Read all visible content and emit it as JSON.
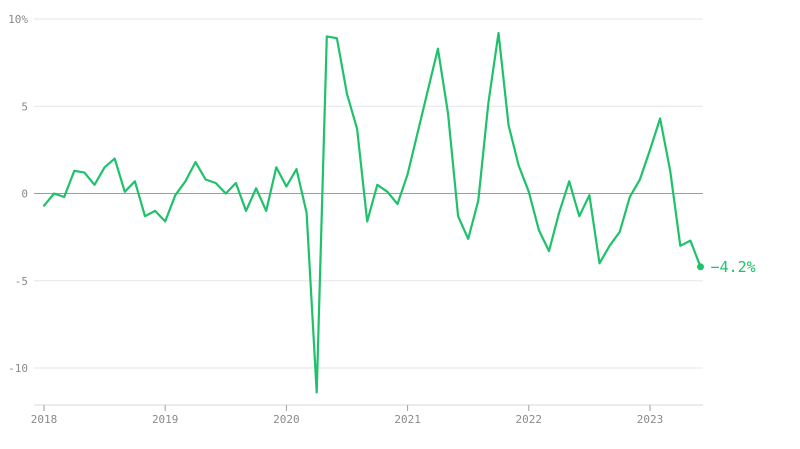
{
  "chart_data": {
    "type": "line",
    "title": "",
    "xlabel": "",
    "ylabel": "",
    "x_ticks": [
      "2018",
      "2019",
      "2020",
      "2021",
      "2022",
      "2023"
    ],
    "y_ticks": [
      "10%",
      "5",
      "0",
      "-5",
      "-10"
    ],
    "ylim": [
      -12,
      10.5
    ],
    "xlim": [
      "2018-01",
      "2023-06"
    ],
    "grid": "horizontal",
    "colors": {
      "line": "#1fc16b",
      "zero_line": "#9e9e9e",
      "grid": "#e6e6e6"
    },
    "end_label": "−4.2%",
    "series": [
      {
        "x": [
          "2018-01",
          "2018-02",
          "2018-03",
          "2018-04",
          "2018-05",
          "2018-06",
          "2018-07",
          "2018-08",
          "2018-09",
          "2018-10",
          "2018-11",
          "2018-12",
          "2019-01",
          "2019-02",
          "2019-03",
          "2019-04",
          "2019-05",
          "2019-06",
          "2019-07",
          "2019-08",
          "2019-09",
          "2019-10",
          "2019-11",
          "2019-12",
          "2020-01",
          "2020-02",
          "2020-03",
          "2020-04",
          "2020-05",
          "2020-06",
          "2020-07",
          "2020-08",
          "2020-09",
          "2020-10",
          "2020-11",
          "2020-12",
          "2021-01",
          "2021-02",
          "2021-03",
          "2021-04",
          "2021-05",
          "2021-06",
          "2021-07",
          "2021-08",
          "2021-09",
          "2021-10",
          "2021-11",
          "2021-12",
          "2022-01",
          "2022-02",
          "2022-03",
          "2022-04",
          "2022-05",
          "2022-06",
          "2022-07",
          "2022-08",
          "2022-09",
          "2022-10",
          "2022-11",
          "2022-12",
          "2023-01",
          "2023-02",
          "2023-03",
          "2023-04",
          "2023-05",
          "2023-06"
        ],
        "values": [
          -0.7,
          0.0,
          -0.2,
          1.3,
          1.2,
          0.5,
          1.5,
          2.0,
          0.1,
          0.7,
          -1.3,
          -1.0,
          -1.6,
          -0.1,
          0.7,
          1.8,
          0.8,
          0.6,
          0.0,
          0.6,
          -1.0,
          0.3,
          -1.0,
          1.5,
          0.4,
          1.4,
          -1.1,
          -11.4,
          9.0,
          8.9,
          5.7,
          3.7,
          -1.6,
          0.5,
          0.1,
          -0.6,
          1.1,
          3.5,
          5.9,
          8.3,
          4.6,
          -1.3,
          -2.6,
          -0.4,
          5.2,
          9.2,
          3.9,
          1.6,
          0.1,
          -2.1,
          -3.3,
          -1.1,
          0.7,
          -1.3,
          -0.1,
          -4.0,
          -3.0,
          -2.2,
          -0.2,
          0.8,
          2.5,
          4.3,
          1.3,
          -3.0,
          -2.7,
          -4.2
        ]
      }
    ]
  }
}
